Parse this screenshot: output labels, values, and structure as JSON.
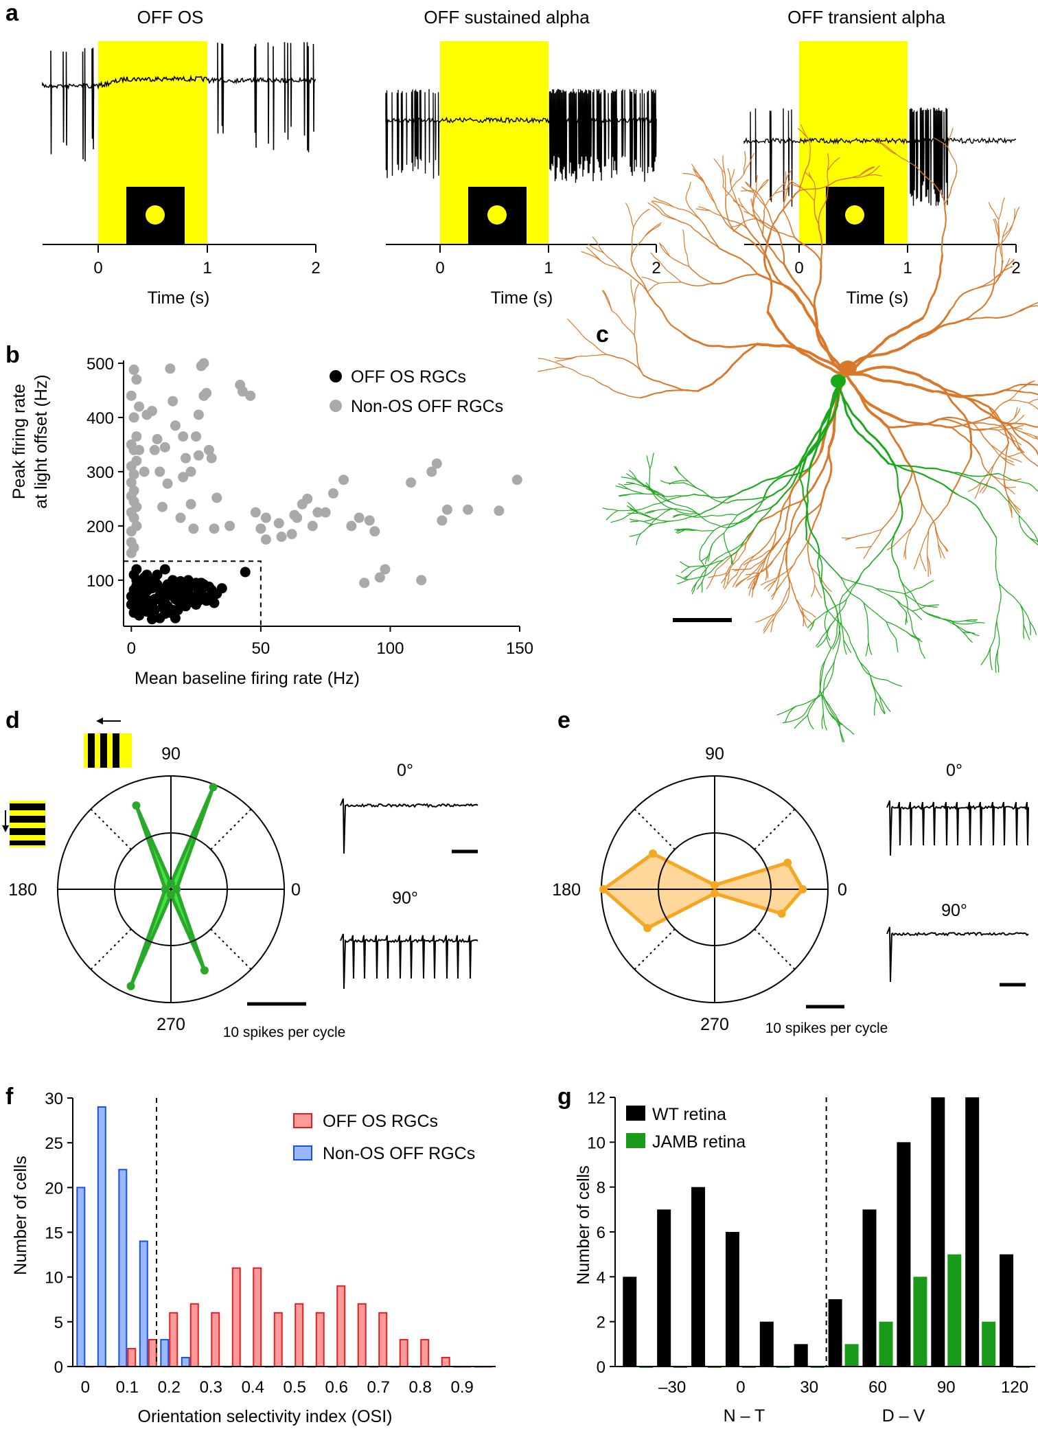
{
  "panel_labels": {
    "a": "a",
    "b": "b",
    "c": "c",
    "d": "d",
    "e": "e",
    "f": "f",
    "g": "g"
  },
  "panel_a": {
    "xlabel": "Time (s)",
    "ticks": [
      "0",
      "1",
      "2"
    ],
    "traces": [
      {
        "title": "OFF OS"
      },
      {
        "title": "OFF sustained alpha"
      },
      {
        "title": "OFF transient alpha"
      }
    ],
    "colors": {
      "stimulus": "#ffff00",
      "trace": "#000000"
    }
  },
  "panel_c": {
    "colors": {
      "cell_a": "#d9782a",
      "cell_b": "#1aa81a"
    }
  },
  "panel_d": {
    "angle_labels": {
      "top": "90",
      "left": "180",
      "right": "0",
      "bottom": "270"
    },
    "scale_label": "10 spikes per cycle",
    "trace_labels": [
      "0°",
      "90°"
    ],
    "fill": "#22dd22",
    "stroke": "#2aa82a",
    "radial_values": [
      1.0,
      19.5,
      1.0,
      16.0,
      1.0,
      18.5,
      1.0,
      15.5
    ],
    "angles_deg": [
      0,
      67.5,
      90,
      112.5,
      180,
      247.5,
      270,
      292.5
    ]
  },
  "panel_e": {
    "angle_labels": {
      "top": "90",
      "left": "180",
      "right": "0",
      "bottom": "270"
    },
    "scale_label": "10 spikes per cycle",
    "trace_labels": [
      "0°",
      "90°"
    ],
    "fill": "#ffd08a",
    "stroke": "#f5a623",
    "radial_values": [
      21.0,
      18.5,
      1.0,
      17.0,
      26.5,
      18.5,
      1.0,
      17.0
    ],
    "angles_deg": [
      0,
      20,
      90,
      150,
      180,
      210,
      270,
      340
    ]
  },
  "chart_data": [
    {
      "id": "b",
      "type": "scatter",
      "xlabel": "Mean baseline firing rate (Hz)",
      "ylabel": "Peak firing rate\nat light offset (Hz)",
      "xlim": [
        -3,
        150
      ],
      "ylim": [
        15,
        505
      ],
      "xticks": [
        "0",
        "50",
        "100",
        "150"
      ],
      "yticks": [
        "100",
        "200",
        "300",
        "400",
        "500"
      ],
      "threshold_box": {
        "x_max": 50,
        "y_max": 135
      },
      "series": [
        {
          "name": "OFF OS RGCs",
          "color": "#000000",
          "points": [
            [
              1,
              82
            ],
            [
              2,
              70
            ],
            [
              3,
              55
            ],
            [
              1,
              40
            ],
            [
              4,
              95
            ],
            [
              5,
              60
            ],
            [
              6,
              110
            ],
            [
              7,
              48
            ],
            [
              8,
              85
            ],
            [
              9,
              100
            ],
            [
              10,
              65
            ],
            [
              11,
              30
            ],
            [
              12,
              78
            ],
            [
              13,
              58
            ],
            [
              14,
              92
            ],
            [
              15,
              72
            ],
            [
              16,
              45
            ],
            [
              17,
              88
            ],
            [
              18,
              62
            ],
            [
              19,
              98
            ],
            [
              20,
              75
            ],
            [
              21,
              52
            ],
            [
              22,
              80
            ],
            [
              23,
              68
            ],
            [
              24,
              90
            ],
            [
              25,
              55
            ],
            [
              26,
              78
            ],
            [
              27,
              95
            ],
            [
              28,
              70
            ],
            [
              29,
              62
            ],
            [
              30,
              88
            ],
            [
              31,
              82
            ],
            [
              33,
              75
            ],
            [
              35,
              85
            ],
            [
              44,
              115
            ],
            [
              2,
              100
            ],
            [
              3,
              35
            ],
            [
              5,
              75
            ],
            [
              6,
              42
            ],
            [
              7,
              95
            ],
            [
              8,
              28
            ],
            [
              9,
              65
            ],
            [
              10,
              110
            ],
            [
              12,
              50
            ],
            [
              14,
              80
            ],
            [
              15,
              40
            ],
            [
              16,
              100
            ],
            [
              18,
              72
            ],
            [
              19,
              55
            ],
            [
              21,
              88
            ],
            [
              23,
              60
            ],
            [
              25,
              95
            ],
            [
              27,
              80
            ],
            [
              30,
              65
            ],
            [
              0,
              70
            ],
            [
              0,
              55
            ],
            [
              1,
              110
            ],
            [
              2,
              120
            ],
            [
              4,
              50
            ],
            [
              6,
              80
            ],
            [
              11,
              85
            ],
            [
              13,
              120
            ],
            [
              17,
              30
            ],
            [
              20,
              90
            ],
            [
              22,
              100
            ],
            [
              24,
              68
            ],
            [
              28,
              92
            ],
            [
              32,
              58
            ],
            [
              3,
              88
            ],
            [
              5,
              105
            ],
            [
              7,
              62
            ],
            [
              9,
              45
            ],
            [
              11,
              72
            ],
            [
              13,
              38
            ],
            [
              15,
              90
            ],
            [
              17,
              65
            ],
            [
              19,
              82
            ],
            [
              1,
              60
            ],
            [
              2,
              90
            ],
            [
              4,
              72
            ],
            [
              6,
              100
            ],
            [
              8,
              55
            ],
            [
              10,
              92
            ],
            [
              12,
              68
            ],
            [
              14,
              52
            ],
            [
              16,
              82
            ],
            [
              18,
              45
            ],
            [
              20,
              70
            ],
            [
              22,
              85
            ],
            [
              26,
              62
            ]
          ]
        },
        {
          "name": "Non-OS OFF RGCs",
          "color": "#a9a9a9",
          "points": [
            [
              1,
              488
            ],
            [
              2,
              470
            ],
            [
              0,
              440
            ],
            [
              3,
              420
            ],
            [
              1,
              400
            ],
            [
              2,
              365
            ],
            [
              0,
              350
            ],
            [
              1,
              340
            ],
            [
              2,
              320
            ],
            [
              0,
              310
            ],
            [
              1,
              295
            ],
            [
              0,
              280
            ],
            [
              1,
              265
            ],
            [
              0,
              255
            ],
            [
              1,
              245
            ],
            [
              2,
              235
            ],
            [
              0,
              225
            ],
            [
              1,
              215
            ],
            [
              3,
              340
            ],
            [
              5,
              300
            ],
            [
              6,
              405
            ],
            [
              8,
              412
            ],
            [
              9,
              340
            ],
            [
              10,
              360
            ],
            [
              11,
              300
            ],
            [
              12,
              235
            ],
            [
              13,
              345
            ],
            [
              14,
              278
            ],
            [
              15,
              490
            ],
            [
              16,
              430
            ],
            [
              17,
              385
            ],
            [
              19,
              215
            ],
            [
              20,
              365
            ],
            [
              20,
              290
            ],
            [
              21,
              325
            ],
            [
              23,
              300
            ],
            [
              23,
              240
            ],
            [
              24,
              195
            ],
            [
              25,
              365
            ],
            [
              26,
              330
            ],
            [
              26,
              405
            ],
            [
              27,
              495
            ],
            [
              28,
              440
            ],
            [
              28,
              500
            ],
            [
              29,
              445
            ],
            [
              30,
              340
            ],
            [
              31,
              325
            ],
            [
              32,
              195
            ],
            [
              33,
              252
            ],
            [
              42,
              460
            ],
            [
              43,
              448
            ],
            [
              46,
              440
            ],
            [
              48,
              225
            ],
            [
              50,
              195
            ],
            [
              52,
              175
            ],
            [
              57,
              205
            ],
            [
              62,
              185
            ],
            [
              64,
              215
            ],
            [
              66,
              240
            ],
            [
              68,
              250
            ],
            [
              70,
              200
            ],
            [
              72,
              225
            ],
            [
              75,
              225
            ],
            [
              78,
              260
            ],
            [
              82,
              285
            ],
            [
              85,
              200
            ],
            [
              90,
              95
            ],
            [
              92,
              210
            ],
            [
              94,
              190
            ],
            [
              96,
              105
            ],
            [
              98,
              120
            ],
            [
              108,
              280
            ],
            [
              112,
              100
            ],
            [
              116,
              300
            ],
            [
              118,
              315
            ],
            [
              120,
              210
            ],
            [
              122,
              230
            ],
            [
              130,
              230
            ],
            [
              142,
              228
            ],
            [
              149,
              285
            ],
            [
              0,
              190
            ],
            [
              0,
              170
            ],
            [
              1,
              160
            ],
            [
              2,
              200
            ],
            [
              0,
              150
            ],
            [
              58,
              180
            ],
            [
              88,
              215
            ],
            [
              38,
              200
            ],
            [
              52,
              215
            ],
            [
              63,
              220
            ]
          ]
        }
      ]
    },
    {
      "id": "f",
      "type": "bar",
      "xlabel": "Orientation selectivity index (OSI)",
      "ylabel": "Number of cells",
      "ylim": [
        0,
        30
      ],
      "yticks": [
        "0",
        "5",
        "10",
        "15",
        "20",
        "25",
        "30"
      ],
      "xticks": [
        "0",
        "0.1",
        "0.2",
        "0.3",
        "0.4",
        "0.5",
        "0.6",
        "0.7",
        "0.8",
        "0.9"
      ],
      "threshold": 0.17,
      "bin_width": 0.05,
      "series": [
        {
          "name": "OFF OS RGCs",
          "color": "#ff9a9a",
          "edge": "#e02020",
          "values": [
            0,
            0,
            2,
            3,
            6,
            7,
            6,
            11,
            11,
            6,
            7,
            6,
            9,
            7,
            6,
            3,
            3,
            1,
            0,
            0
          ]
        },
        {
          "name": "Non-OS OFF RGCs",
          "color": "#9ab8ff",
          "edge": "#1a50e0",
          "values": [
            20,
            29,
            22,
            14,
            3,
            1,
            0,
            0,
            0,
            0,
            0,
            0,
            0,
            0,
            0,
            0,
            0,
            0,
            0,
            0
          ]
        }
      ]
    },
    {
      "id": "g",
      "type": "bar",
      "xlabel_left": "N – T",
      "xlabel_right": "D – V",
      "ylabel": "Number of cells",
      "ylim": [
        0,
        12
      ],
      "yticks": [
        "0",
        "2",
        "4",
        "6",
        "8",
        "10",
        "12"
      ],
      "xticks": [
        "–30",
        "0",
        "30",
        "60",
        "90",
        "120"
      ],
      "xtick_values": [
        -30,
        0,
        30,
        60,
        90,
        120
      ],
      "bin_centers": [
        -45,
        -30,
        -15,
        0,
        15,
        30,
        45,
        60,
        75,
        90,
        105,
        120
      ],
      "threshold": 37.5,
      "series": [
        {
          "name": "WT retina",
          "color": "#000000",
          "values": [
            4,
            7,
            8,
            6,
            2,
            1,
            3,
            7,
            10,
            12,
            12,
            5
          ]
        },
        {
          "name": "JAMB retina",
          "color": "#1a9a1a",
          "values": [
            0,
            0,
            0,
            0,
            0,
            0,
            1,
            2,
            4,
            5,
            2,
            0
          ]
        }
      ]
    }
  ]
}
